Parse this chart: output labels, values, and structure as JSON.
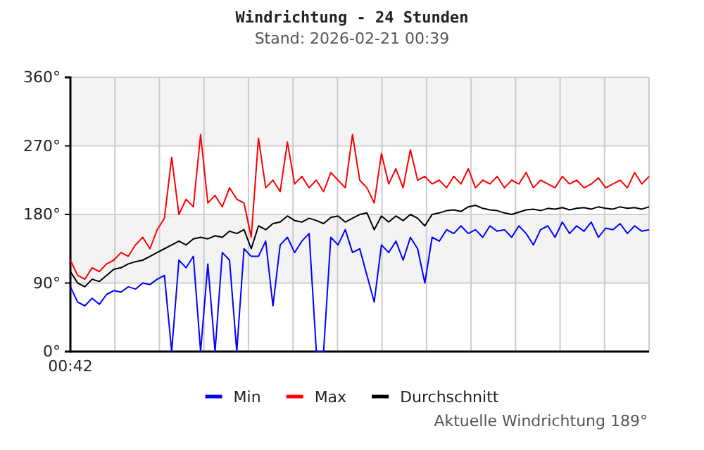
{
  "chart_data": {
    "type": "line",
    "title": "Windrichtung - 24 Stunden",
    "subtitle": "Stand: 2026-02-21 00:39",
    "annotations": [
      "Aktuelle Windrichtung 189°"
    ],
    "categories": [
      "00:42",
      null,
      null,
      null,
      null,
      null,
      null,
      null,
      null,
      null,
      null,
      null,
      null,
      null,
      null,
      null,
      null,
      null,
      null,
      null,
      null,
      null,
      null,
      null,
      null,
      null,
      null,
      null,
      null,
      null,
      null,
      null,
      null,
      null,
      null,
      null,
      null,
      null,
      null,
      null,
      null,
      null,
      null,
      null,
      null,
      null,
      null,
      null,
      null,
      null,
      null,
      null,
      null,
      null,
      null,
      null,
      null,
      null,
      null,
      null,
      null,
      null,
      null,
      null,
      null,
      null,
      null,
      null,
      null,
      null,
      null,
      null,
      null,
      null,
      null,
      null,
      null,
      null,
      null,
      null,
      null
    ],
    "ylim": [
      0,
      360
    ],
    "yticks": [
      {
        "value": 0,
        "label": "0°"
      },
      {
        "value": 90,
        "label": "90°"
      },
      {
        "value": 180,
        "label": "180°"
      },
      {
        "value": 270,
        "label": "270°"
      },
      {
        "value": 360,
        "label": "360°"
      }
    ],
    "grid": true,
    "legend": "bottom",
    "marker": "none",
    "line_style": "solid",
    "series": [
      {
        "name": "Min",
        "color": "#0000ff",
        "values": [
          85,
          65,
          60,
          70,
          62,
          75,
          80,
          78,
          85,
          82,
          90,
          88,
          95,
          100,
          0,
          120,
          110,
          125,
          0,
          115,
          0,
          130,
          120,
          0,
          135,
          125,
          125,
          145,
          60,
          140,
          150,
          130,
          145,
          155,
          0,
          0,
          150,
          140,
          160,
          130,
          135,
          100,
          65,
          140,
          130,
          145,
          120,
          150,
          135,
          90,
          150,
          145,
          160,
          155,
          165,
          155,
          160,
          150,
          165,
          158,
          160,
          150,
          165,
          155,
          140,
          160,
          165,
          150,
          170,
          155,
          165,
          158,
          170,
          150,
          162,
          160,
          168,
          155,
          165,
          158,
          160
        ]
      },
      {
        "name": "Max",
        "color": "#ff0000",
        "values": [
          120,
          100,
          95,
          110,
          105,
          115,
          120,
          130,
          125,
          140,
          150,
          135,
          160,
          175,
          255,
          180,
          200,
          190,
          285,
          195,
          205,
          190,
          215,
          200,
          195,
          150,
          280,
          215,
          225,
          210,
          275,
          220,
          230,
          215,
          225,
          210,
          235,
          225,
          215,
          285,
          225,
          215,
          195,
          260,
          220,
          240,
          215,
          265,
          225,
          230,
          220,
          225,
          215,
          230,
          220,
          240,
          215,
          225,
          220,
          230,
          215,
          225,
          220,
          235,
          215,
          225,
          220,
          215,
          230,
          220,
          225,
          215,
          220,
          228,
          215,
          220,
          225,
          215,
          235,
          220,
          230
        ]
      },
      {
        "name": "Durchschnitt",
        "color": "#000000",
        "values": [
          105,
          90,
          85,
          95,
          92,
          100,
          108,
          110,
          115,
          118,
          120,
          125,
          130,
          135,
          140,
          145,
          140,
          148,
          150,
          148,
          152,
          150,
          158,
          155,
          160,
          135,
          165,
          160,
          168,
          170,
          178,
          172,
          170,
          175,
          172,
          168,
          176,
          178,
          170,
          175,
          180,
          182,
          160,
          178,
          170,
          178,
          172,
          180,
          175,
          165,
          180,
          182,
          185,
          186,
          184,
          190,
          192,
          188,
          186,
          185,
          182,
          180,
          183,
          186,
          187,
          185,
          188,
          187,
          189,
          186,
          188,
          189,
          187,
          190,
          188,
          187,
          190,
          188,
          189,
          187,
          190
        ]
      }
    ]
  }
}
